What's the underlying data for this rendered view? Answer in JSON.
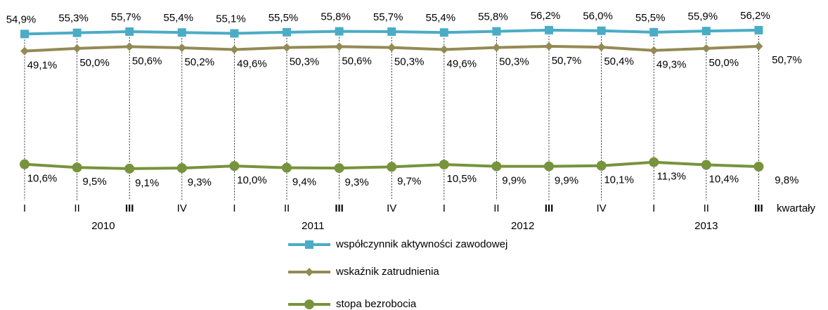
{
  "chart_data": {
    "type": "line",
    "categories": [
      "I",
      "II",
      "III",
      "IV",
      "I",
      "II",
      "III",
      "IV",
      "I",
      "II",
      "III",
      "IV",
      "I",
      "II",
      "III"
    ],
    "year_labels": [
      "2010",
      "2011",
      "2012",
      "2013"
    ],
    "x_label": "kwartały",
    "ylim": [
      0,
      60
    ],
    "grid": false,
    "series": [
      {
        "name": "współczynnik aktywności zawodowej",
        "color": "#4bacc6",
        "marker": "square",
        "values": [
          54.9,
          55.3,
          55.7,
          55.4,
          55.1,
          55.5,
          55.8,
          55.7,
          55.4,
          55.8,
          56.2,
          56.0,
          55.5,
          55.9,
          56.2
        ],
        "value_labels": [
          "54,9%",
          "55,3%",
          "55,7%",
          "55,4%",
          "55,1%",
          "55,5%",
          "55,8%",
          "55,7%",
          "55,4%",
          "55,8%",
          "56,2%",
          "56,0%",
          "55,5%",
          "55,9%",
          "56,2%"
        ]
      },
      {
        "name": "wskaźnik zatrudnienia",
        "color": "#948a54",
        "marker": "diamond",
        "values": [
          49.1,
          50.0,
          50.6,
          50.2,
          49.6,
          50.3,
          50.6,
          50.3,
          49.6,
          50.3,
          50.7,
          50.4,
          49.3,
          50.0,
          50.7
        ],
        "value_labels": [
          "49,1%",
          "50,0%",
          "50,6%",
          "50,2%",
          "49,6%",
          "50,3%",
          "50,6%",
          "50,3%",
          "49,6%",
          "50,3%",
          "50,7%",
          "50,4%",
          "49,3%",
          "50,0%",
          "50,7%"
        ]
      },
      {
        "name": "stopa bezrobocia",
        "color": "#77933c",
        "marker": "circle",
        "values": [
          10.6,
          9.5,
          9.1,
          9.3,
          10.0,
          9.4,
          9.3,
          9.7,
          10.5,
          9.9,
          9.9,
          10.1,
          11.3,
          10.4,
          9.8
        ],
        "value_labels": [
          "10,6%",
          "9,5%",
          "9,1%",
          "9,3%",
          "10,0%",
          "9,4%",
          "9,3%",
          "9,7%",
          "10,5%",
          "9,9%",
          "9,9%",
          "10,1%",
          "11,3%",
          "10,4%",
          "9,8%"
        ]
      }
    ]
  }
}
